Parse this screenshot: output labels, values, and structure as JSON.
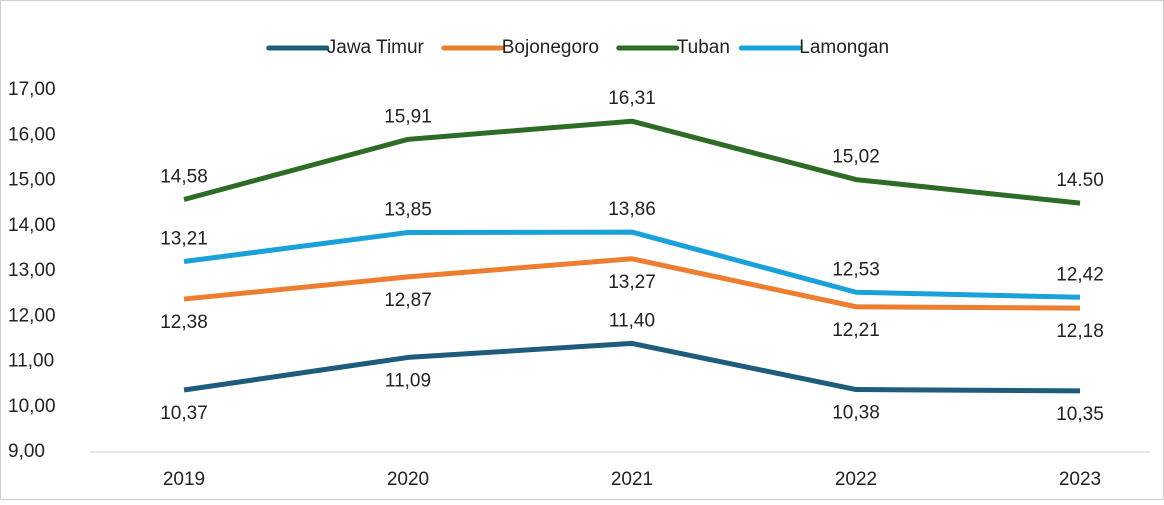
{
  "chart_data": {
    "type": "line",
    "categories": [
      "2019",
      "2020",
      "2021",
      "2022",
      "2023"
    ],
    "series": [
      {
        "name": "Jawa Timur",
        "color": "#1f5b7a",
        "values": [
          10.37,
          11.09,
          11.4,
          10.38,
          10.35
        ],
        "value_labels": [
          "10,37",
          "11,09",
          "11,40",
          "10,38",
          "10,35"
        ]
      },
      {
        "name": "Bojonegoro",
        "color": "#ed7d31",
        "values": [
          12.38,
          12.87,
          13.27,
          12.21,
          12.18
        ],
        "value_labels": [
          "12,38",
          "12,87",
          "13,27",
          "12,21",
          "12,18"
        ]
      },
      {
        "name": "Tuban",
        "color": "#2e6b26",
        "values": [
          14.58,
          15.91,
          16.31,
          15.02,
          14.5
        ],
        "value_labels": [
          "14,58",
          "15,91",
          "16,31",
          "15,02",
          "14.50"
        ]
      },
      {
        "name": "Lamongan",
        "color": "#1ba1d9",
        "values": [
          13.21,
          13.85,
          13.86,
          12.53,
          12.42
        ],
        "value_labels": [
          "13,21",
          "13,85",
          "13,86",
          "12,53",
          "12,42"
        ]
      }
    ],
    "ylim": [
      9,
      17
    ],
    "yticks": [
      {
        "value": 9,
        "label": "9,00"
      },
      {
        "value": 10,
        "label": "10,00"
      },
      {
        "value": 11,
        "label": "11,00"
      },
      {
        "value": 12,
        "label": "12,00"
      },
      {
        "value": 13,
        "label": "13,00"
      },
      {
        "value": 14,
        "label": "14,00"
      },
      {
        "value": 15,
        "label": "15,00"
      },
      {
        "value": 16,
        "label": "16,00"
      },
      {
        "value": 17,
        "label": "17,00"
      }
    ],
    "legend": "top"
  }
}
